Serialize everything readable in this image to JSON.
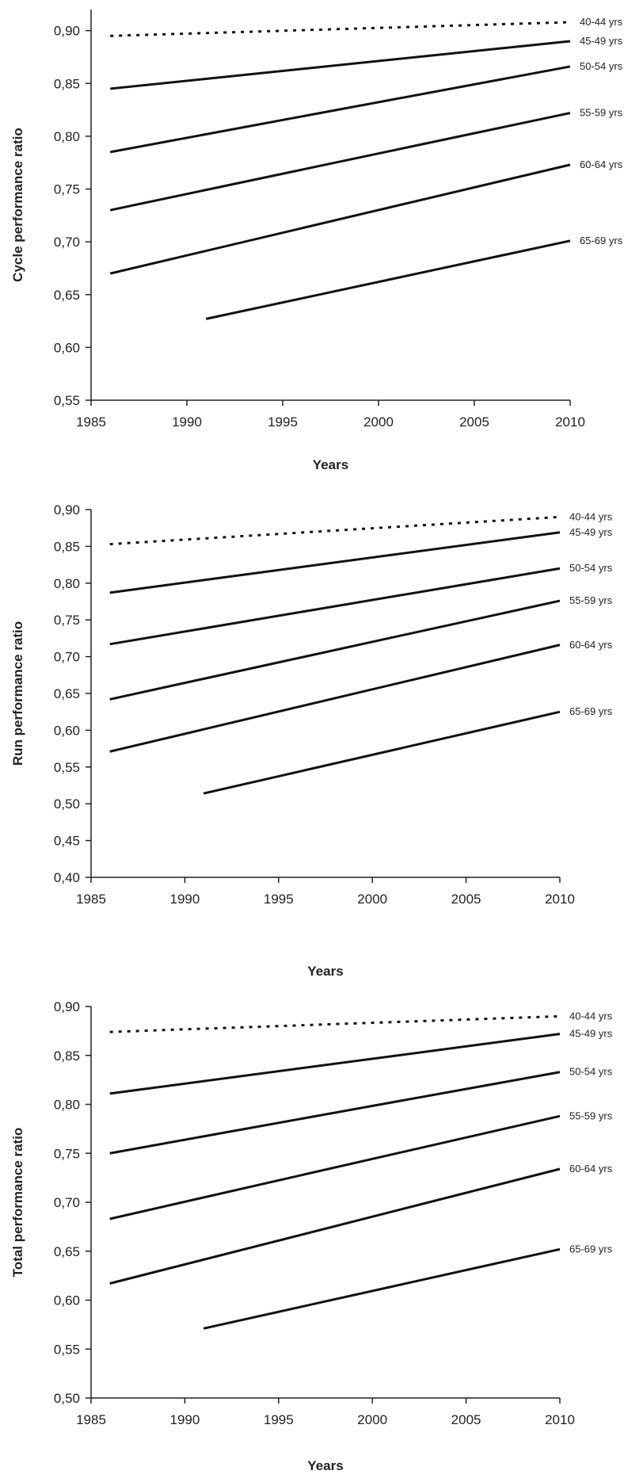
{
  "colors": {
    "line": "#111111",
    "axis": "#222222",
    "background": "#ffffff"
  },
  "chart_data": [
    {
      "type": "line",
      "ylabel": "Cycle performance ratio",
      "xlabel": "Years",
      "xlim": [
        1985,
        2010
      ],
      "ylim": [
        0.55,
        0.92
      ],
      "xticks": [
        1985,
        1990,
        1995,
        2000,
        2005,
        2010
      ],
      "xtick_labels": [
        "1985",
        "1990",
        "1995",
        "2000",
        "2005",
        "2010"
      ],
      "yticks": [
        0.55,
        0.6,
        0.65,
        0.7,
        0.75,
        0.8,
        0.85,
        0.9
      ],
      "ytick_labels": [
        "0,55",
        "0,60",
        "0,65",
        "0,70",
        "0,75",
        "0,80",
        "0,85",
        "0,90"
      ],
      "grid": false,
      "series": [
        {
          "name": "40-44 yrs",
          "style": "dotted",
          "x": [
            1986,
            2010
          ],
          "y": [
            0.895,
            0.908
          ]
        },
        {
          "name": "45-49 yrs",
          "style": "solid",
          "x": [
            1986,
            2010
          ],
          "y": [
            0.845,
            0.89
          ]
        },
        {
          "name": "50-54 yrs",
          "style": "solid",
          "x": [
            1986,
            2010
          ],
          "y": [
            0.785,
            0.866
          ]
        },
        {
          "name": "55-59 yrs",
          "style": "solid",
          "x": [
            1986,
            2010
          ],
          "y": [
            0.73,
            0.822
          ]
        },
        {
          "name": "60-64 yrs",
          "style": "solid",
          "x": [
            1986,
            2010
          ],
          "y": [
            0.67,
            0.773
          ]
        },
        {
          "name": "65-69 yrs",
          "style": "solid",
          "x": [
            1991,
            2010
          ],
          "y": [
            0.627,
            0.701
          ]
        }
      ]
    },
    {
      "type": "line",
      "ylabel": "Run performance ratio",
      "xlabel": "Years",
      "xlim": [
        1985,
        2010
      ],
      "ylim": [
        0.4,
        0.9
      ],
      "xticks": [
        1985,
        1990,
        1995,
        2000,
        2005,
        2010
      ],
      "xtick_labels": [
        "1985",
        "1990",
        "1995",
        "2000",
        "2005",
        "2010"
      ],
      "yticks": [
        0.4,
        0.45,
        0.5,
        0.55,
        0.6,
        0.65,
        0.7,
        0.75,
        0.8,
        0.85,
        0.9
      ],
      "ytick_labels": [
        "0,40",
        "0,45",
        "0,50",
        "0,55",
        "0,60",
        "0,65",
        "0,70",
        "0,75",
        "0,80",
        "0,85",
        "0,90"
      ],
      "grid": false,
      "series": [
        {
          "name": "40-44 yrs",
          "style": "dotted",
          "x": [
            1986,
            2010
          ],
          "y": [
            0.853,
            0.89
          ]
        },
        {
          "name": "45-49 yrs",
          "style": "solid",
          "x": [
            1986,
            2010
          ],
          "y": [
            0.787,
            0.869
          ]
        },
        {
          "name": "50-54 yrs",
          "style": "solid",
          "x": [
            1986,
            2010
          ],
          "y": [
            0.717,
            0.82
          ]
        },
        {
          "name": "55-59 yrs",
          "style": "solid",
          "x": [
            1986,
            2010
          ],
          "y": [
            0.642,
            0.776
          ]
        },
        {
          "name": "60-64 yrs",
          "style": "solid",
          "x": [
            1986,
            2010
          ],
          "y": [
            0.571,
            0.716
          ]
        },
        {
          "name": "65-69 yrs",
          "style": "solid",
          "x": [
            1991,
            2010
          ],
          "y": [
            0.514,
            0.625
          ]
        }
      ]
    },
    {
      "type": "line",
      "ylabel": "Total performance ratio",
      "xlabel": "Years",
      "xlim": [
        1985,
        2010
      ],
      "ylim": [
        0.5,
        0.9
      ],
      "xticks": [
        1985,
        1990,
        1995,
        2000,
        2005,
        2010
      ],
      "xtick_labels": [
        "1985",
        "1990",
        "1995",
        "2000",
        "2005",
        "2010"
      ],
      "yticks": [
        0.5,
        0.55,
        0.6,
        0.65,
        0.7,
        0.75,
        0.8,
        0.85,
        0.9
      ],
      "ytick_labels": [
        "0,50",
        "0,55",
        "0,60",
        "0,65",
        "0,70",
        "0,75",
        "0,80",
        "0,85",
        "0,90"
      ],
      "grid": false,
      "series": [
        {
          "name": "40-44 yrs",
          "style": "dotted",
          "x": [
            1986,
            2010
          ],
          "y": [
            0.874,
            0.89
          ]
        },
        {
          "name": "45-49 yrs",
          "style": "solid",
          "x": [
            1986,
            2010
          ],
          "y": [
            0.811,
            0.872
          ]
        },
        {
          "name": "50-54 yrs",
          "style": "solid",
          "x": [
            1986,
            2010
          ],
          "y": [
            0.75,
            0.833
          ]
        },
        {
          "name": "55-59 yrs",
          "style": "solid",
          "x": [
            1986,
            2010
          ],
          "y": [
            0.683,
            0.788
          ]
        },
        {
          "name": "60-64 yrs",
          "style": "solid",
          "x": [
            1986,
            2010
          ],
          "y": [
            0.617,
            0.734
          ]
        },
        {
          "name": "65-69 yrs",
          "style": "solid",
          "x": [
            1991,
            2010
          ],
          "y": [
            0.571,
            0.652
          ]
        }
      ]
    }
  ]
}
